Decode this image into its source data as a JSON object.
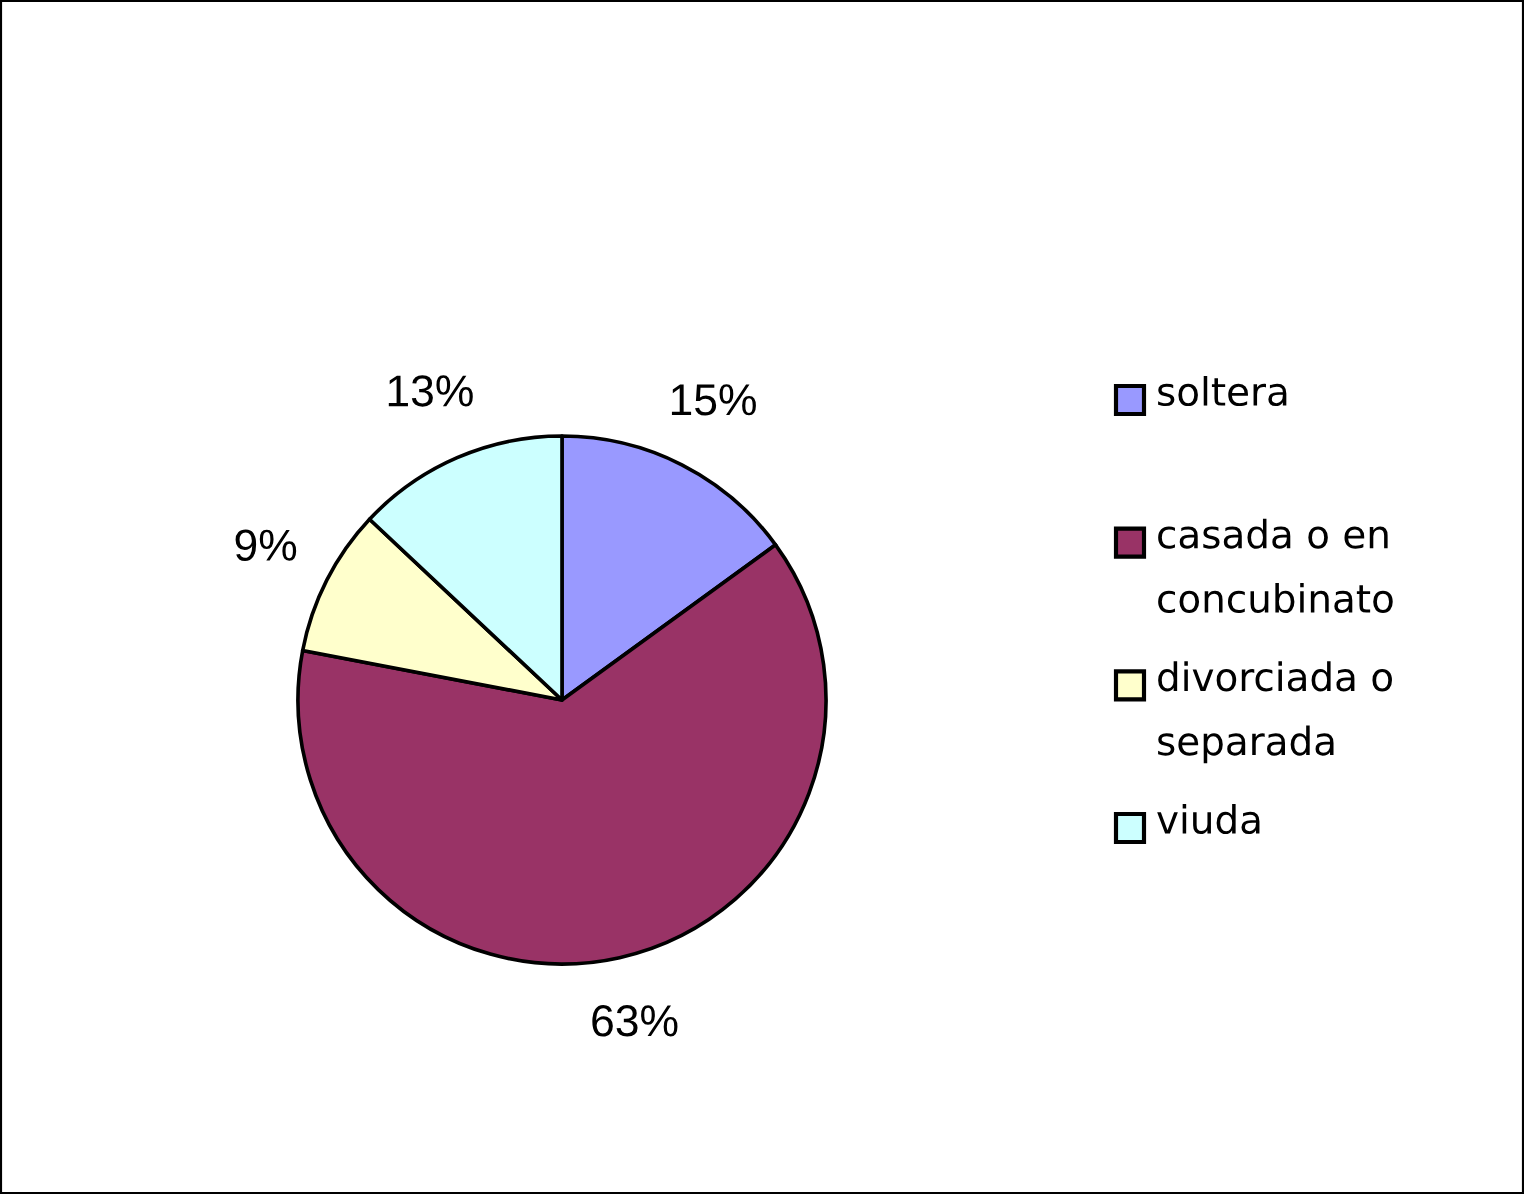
{
  "chart_data": {
    "type": "pie",
    "categories": [
      "soltera",
      "casada o en concubinato",
      "divorciada o separada",
      "viuda"
    ],
    "values": [
      15,
      63,
      9,
      13
    ],
    "value_labels": [
      "15%",
      "63%",
      "9%",
      "13%"
    ],
    "colors": [
      "#9999ff",
      "#993366",
      "#ffffcc",
      "#ccffff"
    ],
    "legend": "right"
  }
}
